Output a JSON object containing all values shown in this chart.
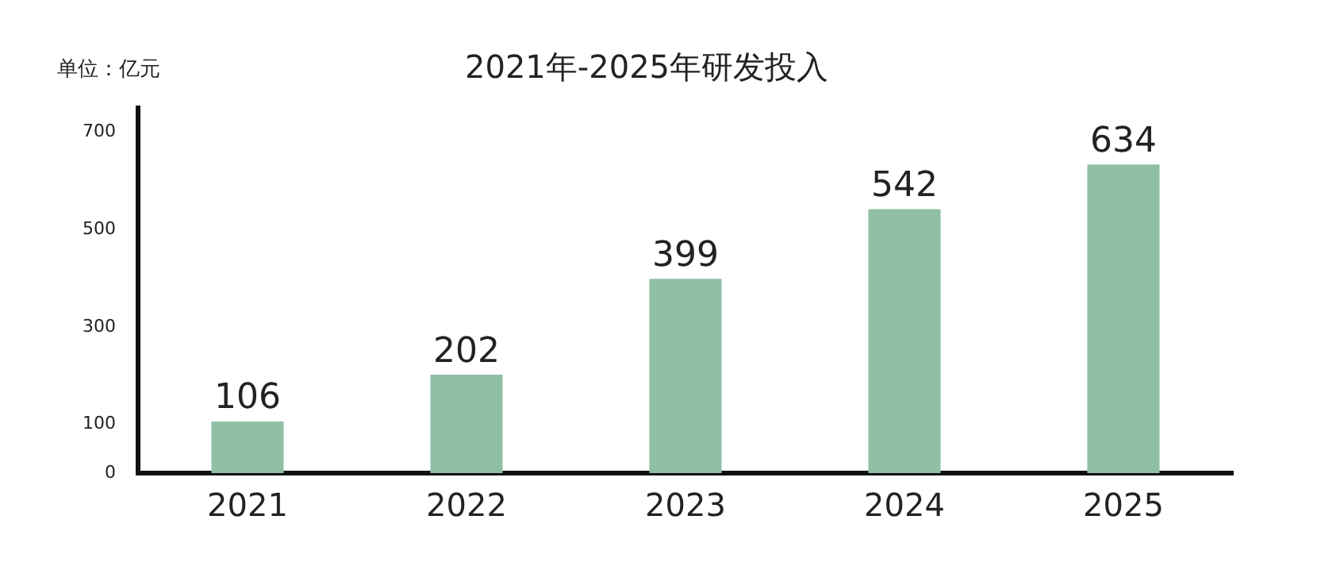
{
  "chart_data": {
    "type": "bar",
    "title": "2021年-2025年研发投入",
    "ylabel": "单位：亿元",
    "categories": [
      "2021",
      "2022",
      "2023",
      "2024",
      "2025"
    ],
    "values": [
      106,
      202,
      399,
      542,
      634
    ],
    "color": "#8fc0a6",
    "ylim": [
      0,
      750
    ],
    "yticks": [
      0,
      100,
      300,
      500,
      700
    ],
    "grid": false,
    "data_labels": true
  }
}
